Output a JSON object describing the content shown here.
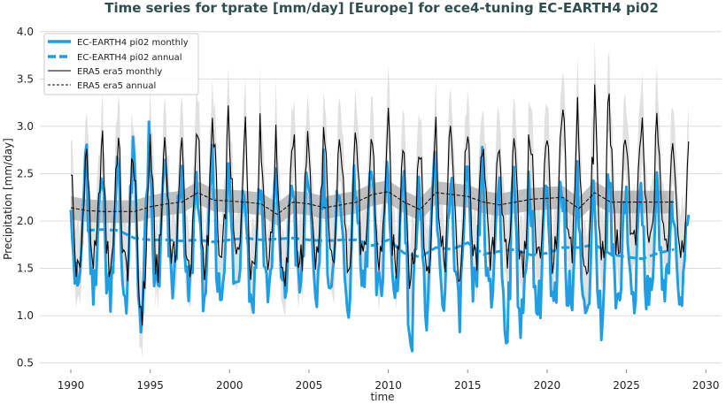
{
  "chart_data": {
    "type": "line",
    "title": "Time series for tprate [mm/day] [Europe] for ece4-tuning EC-EARTH4 pi02",
    "xlabel": "time",
    "ylabel": "Precipitation [mm/day]",
    "xlim": [
      1988,
      2031
    ],
    "ylim": [
      0.45,
      4.0
    ],
    "xticks": [
      "1990",
      "1995",
      "2000",
      "2005",
      "2010",
      "2015",
      "2020",
      "2025",
      "2030"
    ],
    "yticks": [
      "0.5",
      "1.0",
      "1.5",
      "2.0",
      "2.5",
      "3.0",
      "3.5",
      "4.0"
    ],
    "grid": true,
    "legend_position": "top-left",
    "colors": {
      "model": "#1f9ee3",
      "obs": "#000000",
      "band_light": "#dcdcdc",
      "band_dark": "#a9a9a9",
      "title": "#2f4f4f"
    },
    "series": [
      {
        "name": "EC-EARTH4 pi02 monthly",
        "style": "solid-thick",
        "color": "#1f9ee3",
        "years": [
          1990,
          1991,
          1992,
          1993,
          1994,
          1995,
          1996,
          1997,
          1998,
          1999,
          2000,
          2001,
          2002,
          2003,
          2004,
          2005,
          2006,
          2007,
          2008,
          2009,
          2010,
          2011,
          2012,
          2013,
          2014,
          2015,
          2016,
          2017,
          2018,
          2019,
          2020,
          2021,
          2022,
          2023,
          2024,
          2025,
          2026,
          2027,
          2028
        ],
        "yearly_max": [
          2.5,
          2.75,
          2.55,
          2.6,
          2.75,
          2.55,
          2.5,
          2.45,
          2.55,
          2.45,
          2.5,
          2.5,
          2.35,
          2.4,
          2.6,
          2.55,
          2.5,
          2.45,
          2.5,
          2.55,
          2.45,
          2.5,
          2.6,
          2.45,
          2.4,
          2.55,
          2.4,
          2.45,
          2.5,
          2.35,
          2.4,
          2.45,
          2.3,
          2.4,
          2.3,
          2.35,
          2.3,
          2.2,
          2.15
        ],
        "yearly_min": [
          1.3,
          1.15,
          1.3,
          1.25,
          1.1,
          1.3,
          1.35,
          1.25,
          1.3,
          1.25,
          1.3,
          1.2,
          1.3,
          1.25,
          1.3,
          1.25,
          1.3,
          1.2,
          1.35,
          1.2,
          1.3,
          0.95,
          1.05,
          1.2,
          1.1,
          1.25,
          1.15,
          1.0,
          0.92,
          1.1,
          1.05,
          1.2,
          0.98,
          1.0,
          1.15,
          1.2,
          1.15,
          1.3,
          1.25
        ]
      },
      {
        "name": "EC-EARTH4 pi02 annual",
        "style": "dashed-thick",
        "color": "#1f9ee3",
        "x": [
          1991,
          1992,
          1993,
          1994,
          1995,
          1996,
          1997,
          1998,
          1999,
          2000,
          2001,
          2002,
          2003,
          2004,
          2005,
          2006,
          2007,
          2008,
          2009,
          2010,
          2011,
          2012,
          2013,
          2014,
          2015,
          2016,
          2017,
          2018,
          2019,
          2020,
          2021,
          2022,
          2023,
          2024,
          2025,
          2026,
          2027,
          2028
        ],
        "y": [
          1.9,
          1.91,
          1.9,
          1.82,
          1.8,
          1.8,
          1.79,
          1.8,
          1.78,
          1.8,
          1.82,
          1.8,
          1.81,
          1.82,
          1.8,
          1.79,
          1.8,
          1.8,
          1.74,
          1.8,
          1.66,
          1.62,
          1.72,
          1.7,
          1.77,
          1.65,
          1.68,
          1.7,
          1.64,
          1.66,
          1.72,
          1.72,
          1.75,
          1.65,
          1.62,
          1.6,
          1.66,
          1.7
        ]
      },
      {
        "name": "ERA5 era5 monthly",
        "style": "solid-thin",
        "color": "#000000",
        "years": [
          1990,
          1991,
          1992,
          1993,
          1994,
          1995,
          1996,
          1997,
          1998,
          1999,
          2000,
          2001,
          2002,
          2003,
          2004,
          2005,
          2006,
          2007,
          2008,
          2009,
          2010,
          2011,
          2012,
          2013,
          2014,
          2015,
          2016,
          2017,
          2018,
          2019,
          2020,
          2021,
          2022,
          2023,
          2024,
          2025,
          2026,
          2027,
          2028
        ],
        "yearly_max": [
          2.65,
          2.75,
          2.8,
          2.85,
          2.5,
          2.95,
          2.7,
          2.8,
          3.0,
          3.05,
          2.9,
          2.95,
          2.85,
          2.6,
          3.0,
          2.9,
          2.8,
          2.95,
          2.9,
          2.85,
          3.0,
          2.75,
          2.85,
          3.0,
          2.95,
          2.9,
          2.95,
          2.85,
          3.0,
          2.9,
          3.0,
          3.2,
          2.75,
          3.35,
          2.9,
          3.0,
          3.0,
          3.0,
          2.7
        ],
        "yearly_min": [
          1.45,
          1.6,
          1.55,
          1.5,
          1.1,
          1.55,
          1.6,
          1.55,
          1.6,
          1.55,
          1.6,
          1.55,
          1.65,
          1.45,
          1.6,
          1.6,
          1.55,
          1.65,
          1.55,
          1.6,
          1.55,
          1.45,
          1.55,
          1.6,
          1.5,
          1.6,
          1.55,
          1.6,
          1.5,
          1.6,
          1.6,
          1.7,
          1.55,
          1.65,
          1.75,
          1.75,
          1.75,
          1.75,
          1.75
        ]
      },
      {
        "name": "ERA5 era5 annual",
        "style": "dashed-thin",
        "color": "#000000",
        "x": [
          1990,
          1991,
          1992,
          1993,
          1994,
          1995,
          1996,
          1997,
          1998,
          1999,
          2000,
          2001,
          2002,
          2003,
          2004,
          2005,
          2006,
          2007,
          2008,
          2009,
          2010,
          2011,
          2012,
          2013,
          2014,
          2015,
          2016,
          2017,
          2018,
          2019,
          2020,
          2021,
          2022,
          2023,
          2024,
          2025,
          2026,
          2027,
          2028
        ],
        "y": [
          2.14,
          2.11,
          2.1,
          2.1,
          2.1,
          2.15,
          2.18,
          2.2,
          2.3,
          2.22,
          2.21,
          2.2,
          2.18,
          2.07,
          2.2,
          2.18,
          2.14,
          2.17,
          2.2,
          2.28,
          2.31,
          2.2,
          2.12,
          2.3,
          2.28,
          2.26,
          2.2,
          2.17,
          2.2,
          2.23,
          2.24,
          2.25,
          2.13,
          2.3,
          2.2,
          2.2,
          2.2,
          2.2,
          2.2
        ]
      }
    ]
  }
}
